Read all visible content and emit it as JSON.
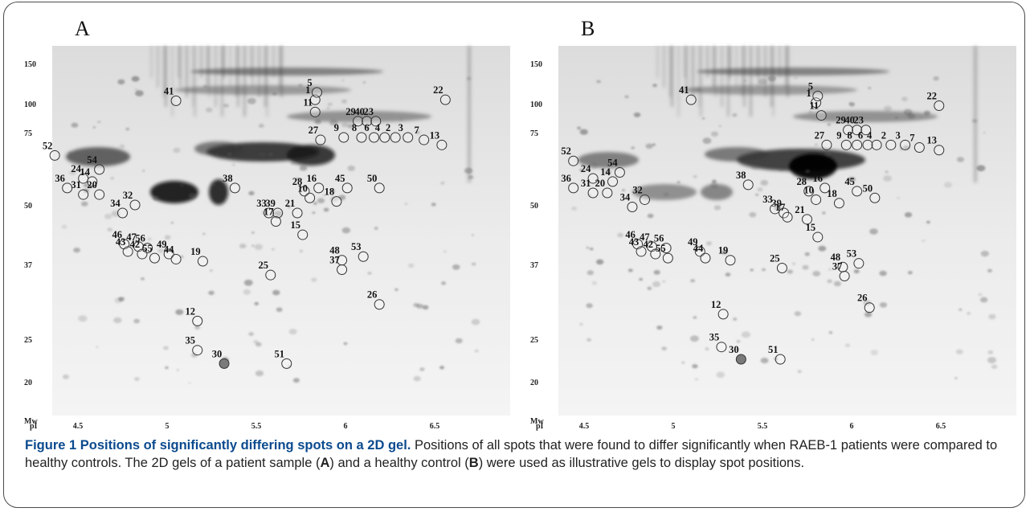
{
  "figure": {
    "caption": {
      "title": "Figure 1 Positions of significantly differing spots on a 2D gel.",
      "text_1": " Positions of all spots that were found to differ significantly when RAEB-1 patients were compared to healthy controls. The 2D gels of a patient sample (",
      "label_a": "A",
      "text_2": ") and a healthy control (",
      "label_b": "B",
      "text_3": ") were used as illustrative gels to display spot positions."
    },
    "axes": {
      "mw_title": "Mw",
      "pi_title": "pI",
      "mw_ticks": [
        "150",
        "100",
        "75",
        "50",
        "37",
        "25",
        "20"
      ],
      "pi_ticks": [
        "4.5",
        "5",
        "5.5",
        "6",
        "6.5",
        "7"
      ]
    },
    "panels": [
      {
        "letter": "A",
        "spots": [
          {
            "id": "1",
            "pi": 5.83,
            "mw": 104
          },
          {
            "id": "5",
            "pi": 5.84,
            "mw": 112
          },
          {
            "id": "11",
            "pi": 5.83,
            "mw": 92
          },
          {
            "id": "22",
            "pi": 6.56,
            "mw": 104
          },
          {
            "id": "41",
            "pi": 5.05,
            "mw": 103
          },
          {
            "id": "29",
            "pi": 6.07,
            "mw": 84
          },
          {
            "id": "40",
            "pi": 6.12,
            "mw": 84
          },
          {
            "id": "23",
            "pi": 6.17,
            "mw": 84
          },
          {
            "id": "27",
            "pi": 5.86,
            "mw": 72
          },
          {
            "id": "9",
            "pi": 5.99,
            "mw": 73
          },
          {
            "id": "8",
            "pi": 6.09,
            "mw": 73
          },
          {
            "id": "6",
            "pi": 6.16,
            "mw": 73
          },
          {
            "id": "4",
            "pi": 6.22,
            "mw": 73
          },
          {
            "id": "2",
            "pi": 6.28,
            "mw": 73
          },
          {
            "id": "3",
            "pi": 6.35,
            "mw": 73
          },
          {
            "id": "7",
            "pi": 6.44,
            "mw": 72
          },
          {
            "id": "13",
            "pi": 6.54,
            "mw": 70
          },
          {
            "id": "52",
            "pi": 4.37,
            "mw": 66
          },
          {
            "id": "54",
            "pi": 4.62,
            "mw": 61
          },
          {
            "id": "24",
            "pi": 4.53,
            "mw": 58
          },
          {
            "id": "14",
            "pi": 4.58,
            "mw": 57
          },
          {
            "id": "36",
            "pi": 4.44,
            "mw": 55
          },
          {
            "id": "31",
            "pi": 4.53,
            "mw": 53
          },
          {
            "id": "20",
            "pi": 4.62,
            "mw": 53
          },
          {
            "id": "32",
            "pi": 4.82,
            "mw": 50
          },
          {
            "id": "34",
            "pi": 4.75,
            "mw": 48
          },
          {
            "id": "38",
            "pi": 5.38,
            "mw": 55
          },
          {
            "id": "28",
            "pi": 5.77,
            "mw": 54
          },
          {
            "id": "16",
            "pi": 5.85,
            "mw": 55
          },
          {
            "id": "45",
            "pi": 6.01,
            "mw": 55
          },
          {
            "id": "50",
            "pi": 6.19,
            "mw": 55
          },
          {
            "id": "10",
            "pi": 5.8,
            "mw": 52
          },
          {
            "id": "18",
            "pi": 5.95,
            "mw": 51
          },
          {
            "id": "39",
            "pi": 5.62,
            "mw": 48
          },
          {
            "id": "33",
            "pi": 5.57,
            "mw": 48
          },
          {
            "id": "21",
            "pi": 5.73,
            "mw": 48
          },
          {
            "id": "17",
            "pi": 5.61,
            "mw": 46
          },
          {
            "id": "15",
            "pi": 5.76,
            "mw": 43
          },
          {
            "id": "46",
            "pi": 4.76,
            "mw": 41
          },
          {
            "id": "47",
            "pi": 4.84,
            "mw": 40.5
          },
          {
            "id": "56",
            "pi": 4.89,
            "mw": 40.2
          },
          {
            "id": "43",
            "pi": 4.78,
            "mw": 39.5
          },
          {
            "id": "42",
            "pi": 4.86,
            "mw": 39
          },
          {
            "id": "55",
            "pi": 4.93,
            "mw": 38.2
          },
          {
            "id": "49",
            "pi": 5.01,
            "mw": 39
          },
          {
            "id": "44",
            "pi": 5.05,
            "mw": 38
          },
          {
            "id": "19",
            "pi": 5.2,
            "mw": 37.6
          },
          {
            "id": "48",
            "pi": 5.98,
            "mw": 37.8
          },
          {
            "id": "53",
            "pi": 6.1,
            "mw": 38.5
          },
          {
            "id": "37",
            "pi": 5.98,
            "mw": 36
          },
          {
            "id": "25",
            "pi": 5.58,
            "mw": 35
          },
          {
            "id": "26",
            "pi": 6.19,
            "mw": 30
          },
          {
            "id": "12",
            "pi": 5.17,
            "mw": 27.5
          },
          {
            "id": "35",
            "pi": 5.17,
            "mw": 23.6
          },
          {
            "id": "30",
            "pi": 5.32,
            "mw": 22,
            "filled": true
          },
          {
            "id": "51",
            "pi": 5.67,
            "mw": 22
          }
        ]
      },
      {
        "letter": "B",
        "spots": [
          {
            "id": "1",
            "pi": 5.8,
            "mw": 101
          },
          {
            "id": "5",
            "pi": 5.81,
            "mw": 108
          },
          {
            "id": "11",
            "pi": 5.83,
            "mw": 89
          },
          {
            "id": "22",
            "pi": 6.49,
            "mw": 98
          },
          {
            "id": "41",
            "pi": 5.1,
            "mw": 104
          },
          {
            "id": "29",
            "pi": 5.98,
            "mw": 77
          },
          {
            "id": "40",
            "pi": 6.03,
            "mw": 77
          },
          {
            "id": "23",
            "pi": 6.08,
            "mw": 77
          },
          {
            "id": "27",
            "pi": 5.86,
            "mw": 70
          },
          {
            "id": "9",
            "pi": 5.97,
            "mw": 70
          },
          {
            "id": "8",
            "pi": 6.03,
            "mw": 70
          },
          {
            "id": "6",
            "pi": 6.09,
            "mw": 70
          },
          {
            "id": "4",
            "pi": 6.14,
            "mw": 70
          },
          {
            "id": "2",
            "pi": 6.22,
            "mw": 70
          },
          {
            "id": "3",
            "pi": 6.3,
            "mw": 70
          },
          {
            "id": "7",
            "pi": 6.38,
            "mw": 69
          },
          {
            "id": "13",
            "pi": 6.49,
            "mw": 68
          },
          {
            "id": "52",
            "pi": 4.44,
            "mw": 64
          },
          {
            "id": "54",
            "pi": 4.7,
            "mw": 60
          },
          {
            "id": "24",
            "pi": 4.55,
            "mw": 58
          },
          {
            "id": "14",
            "pi": 4.66,
            "mw": 57
          },
          {
            "id": "36",
            "pi": 4.44,
            "mw": 55
          },
          {
            "id": "31",
            "pi": 4.55,
            "mw": 53.5
          },
          {
            "id": "20",
            "pi": 4.63,
            "mw": 53.5
          },
          {
            "id": "32",
            "pi": 4.84,
            "mw": 51.5
          },
          {
            "id": "34",
            "pi": 4.77,
            "mw": 49.5
          },
          {
            "id": "38",
            "pi": 5.42,
            "mw": 56
          },
          {
            "id": "28",
            "pi": 5.76,
            "mw": 54
          },
          {
            "id": "16",
            "pi": 5.85,
            "mw": 55
          },
          {
            "id": "45",
            "pi": 6.03,
            "mw": 54
          },
          {
            "id": "50",
            "pi": 6.13,
            "mw": 52
          },
          {
            "id": "10",
            "pi": 5.8,
            "mw": 51.5
          },
          {
            "id": "18",
            "pi": 5.93,
            "mw": 50.5
          },
          {
            "id": "39",
            "pi": 5.62,
            "mw": 48
          },
          {
            "id": "33",
            "pi": 5.57,
            "mw": 49
          },
          {
            "id": "21",
            "pi": 5.75,
            "mw": 46.5
          },
          {
            "id": "17",
            "pi": 5.64,
            "mw": 47
          },
          {
            "id": "15",
            "pi": 5.81,
            "mw": 42.5
          },
          {
            "id": "46",
            "pi": 4.8,
            "mw": 41
          },
          {
            "id": "47",
            "pi": 4.88,
            "mw": 40.5
          },
          {
            "id": "56",
            "pi": 4.96,
            "mw": 40.2
          },
          {
            "id": "43",
            "pi": 4.82,
            "mw": 39.5
          },
          {
            "id": "42",
            "pi": 4.9,
            "mw": 39
          },
          {
            "id": "55",
            "pi": 4.97,
            "mw": 38.2
          },
          {
            "id": "49",
            "pi": 5.15,
            "mw": 39.5
          },
          {
            "id": "44",
            "pi": 5.18,
            "mw": 38.2
          },
          {
            "id": "19",
            "pi": 5.32,
            "mw": 37.8
          },
          {
            "id": "48",
            "pi": 5.95,
            "mw": 36.5
          },
          {
            "id": "53",
            "pi": 6.04,
            "mw": 37.2
          },
          {
            "id": "37",
            "pi": 5.96,
            "mw": 34.8
          },
          {
            "id": "25",
            "pi": 5.61,
            "mw": 36.3
          },
          {
            "id": "26",
            "pi": 6.1,
            "mw": 29.5
          },
          {
            "id": "12",
            "pi": 5.28,
            "mw": 28.5
          },
          {
            "id": "35",
            "pi": 5.27,
            "mw": 24
          },
          {
            "id": "30",
            "pi": 5.38,
            "mw": 22.5,
            "filled": true
          },
          {
            "id": "51",
            "pi": 5.6,
            "mw": 22.5
          }
        ]
      }
    ]
  }
}
